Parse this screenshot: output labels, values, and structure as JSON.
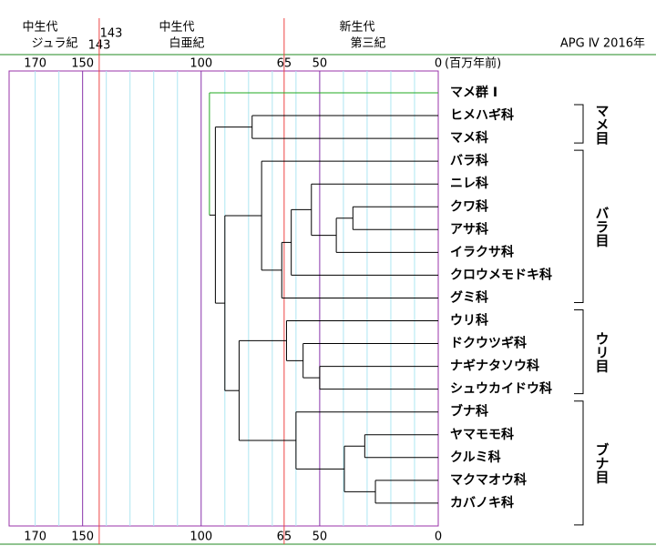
{
  "header": {
    "eras": [
      {
        "era": "中生代",
        "period": "ジュラ紀"
      },
      {
        "era": "中生代",
        "period": "白亜紀"
      },
      {
        "era": "新生代",
        "period": "第三紀"
      }
    ],
    "boundary": 143,
    "source": "APG Ⅳ  2016年"
  },
  "axis": {
    "xlim": [
      181,
      0
    ],
    "ticks": [
      170,
      150,
      100,
      65,
      50,
      0
    ],
    "unit": "(百万年前)",
    "major_lines": [
      150,
      100,
      50
    ],
    "red_lines": [
      143,
      65
    ],
    "minor_lines": [
      170,
      160,
      140,
      130,
      120,
      110,
      90,
      80,
      70,
      60,
      40,
      30,
      20,
      10
    ]
  },
  "tree": {
    "age": 96.5,
    "color": "#22aa22",
    "children": [
      {
        "label": "マメ群 I",
        "color": "#22aa22"
      },
      {
        "age": 94,
        "children": [
          {
            "age": 78.5,
            "order": "マメ目",
            "children": [
              {
                "label": "ヒメハギ科"
              },
              {
                "label": "マメ科"
              }
            ]
          },
          {
            "age": 90,
            "children": [
              {
                "age": 74.5,
                "order": "バラ目",
                "children": [
                  {
                    "label": "バラ科"
                  },
                  {
                    "age": 66,
                    "children": [
                      {
                        "age": 62,
                        "children": [
                          {
                            "age": 53.5,
                            "children": [
                              {
                                "label": "ニレ科"
                              },
                              {
                                "age": 43,
                                "children": [
                                  {
                                    "age": 36,
                                    "children": [
                                      {
                                        "label": "クワ科"
                                      },
                                      {
                                        "label": "アサ科"
                                      }
                                    ]
                                  },
                                  {
                                    "label": "イラクサ科"
                                  }
                                ]
                              }
                            ]
                          },
                          {
                            "label": "クロウメモドキ科"
                          }
                        ]
                      },
                      {
                        "label": "グミ科"
                      }
                    ]
                  }
                ]
              },
              {
                "age": 84,
                "children": [
                  {
                    "age": 64,
                    "order": "ウリ目",
                    "children": [
                      {
                        "label": "ウリ科"
                      },
                      {
                        "age": 57,
                        "children": [
                          {
                            "label": "ドクウツギ科"
                          },
                          {
                            "age": 50,
                            "children": [
                              {
                                "label": "ナギナタソウ科"
                              },
                              {
                                "label": "シュウカイドウ科"
                              }
                            ]
                          }
                        ]
                      }
                    ]
                  },
                  {
                    "age": 60,
                    "order": "ブナ目",
                    "children": [
                      {
                        "label": "ブナ科"
                      },
                      {
                        "age": 39.6,
                        "children": [
                          {
                            "age": 31,
                            "children": [
                              {
                                "label": "ヤマモモ科"
                              },
                              {
                                "label": "クルミ科"
                              }
                            ]
                          },
                          {
                            "age": 26.5,
                            "children": [
                              {
                                "label": "マクマオウ科"
                              },
                              {
                                "label": "カバノキ科"
                              }
                            ]
                          }
                        ]
                      }
                    ]
                  }
                ]
              }
            ]
          }
        ]
      }
    ]
  }
}
